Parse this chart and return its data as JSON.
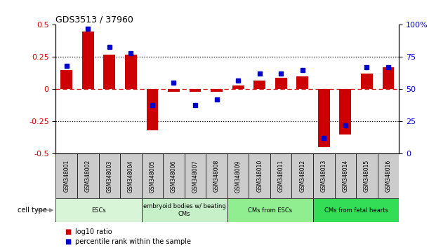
{
  "title": "GDS3513 / 37960",
  "samples": [
    "GSM348001",
    "GSM348002",
    "GSM348003",
    "GSM348004",
    "GSM348005",
    "GSM348006",
    "GSM348007",
    "GSM348008",
    "GSM348009",
    "GSM348010",
    "GSM348011",
    "GSM348012",
    "GSM348013",
    "GSM348014",
    "GSM348015",
    "GSM348016"
  ],
  "log10_ratio": [
    0.15,
    0.45,
    0.27,
    0.27,
    -0.32,
    -0.02,
    -0.02,
    -0.02,
    0.03,
    0.07,
    0.09,
    0.1,
    -0.45,
    -0.35,
    0.12,
    0.17
  ],
  "percentile_rank": [
    68,
    97,
    83,
    78,
    38,
    55,
    38,
    42,
    57,
    62,
    62,
    65,
    12,
    22,
    67,
    67
  ],
  "cell_type_groups": [
    {
      "label": "ESCs",
      "start": 0,
      "end": 3,
      "color": "#d8f5d8"
    },
    {
      "label": "embryoid bodies w/ beating\nCMs",
      "start": 4,
      "end": 7,
      "color": "#c8f0c8"
    },
    {
      "label": "CMs from ESCs",
      "start": 8,
      "end": 11,
      "color": "#90EE90"
    },
    {
      "label": "CMs from fetal hearts",
      "start": 12,
      "end": 15,
      "color": "#33dd55"
    }
  ],
  "bar_color": "#cc0000",
  "dot_color": "#0000cc",
  "ylim_left": [
    -0.5,
    0.5
  ],
  "ylim_right": [
    0,
    100
  ],
  "yticks_left": [
    -0.5,
    -0.25,
    0,
    0.25,
    0.5
  ],
  "ytick_labels_left": [
    "-0.5",
    "-0.25",
    "0",
    "0.25",
    "0.5"
  ],
  "yticks_right": [
    0,
    25,
    50,
    75,
    100
  ],
  "ytick_labels_right": [
    "0",
    "25",
    "50",
    "75",
    "100%"
  ],
  "legend_items": [
    {
      "color": "#cc0000",
      "label": "log10 ratio"
    },
    {
      "color": "#0000cc",
      "label": "percentile rank within the sample"
    }
  ],
  "sample_box_color": "#cccccc",
  "cell_type_label": "cell type",
  "cell_type_arrow_color": "#888888"
}
